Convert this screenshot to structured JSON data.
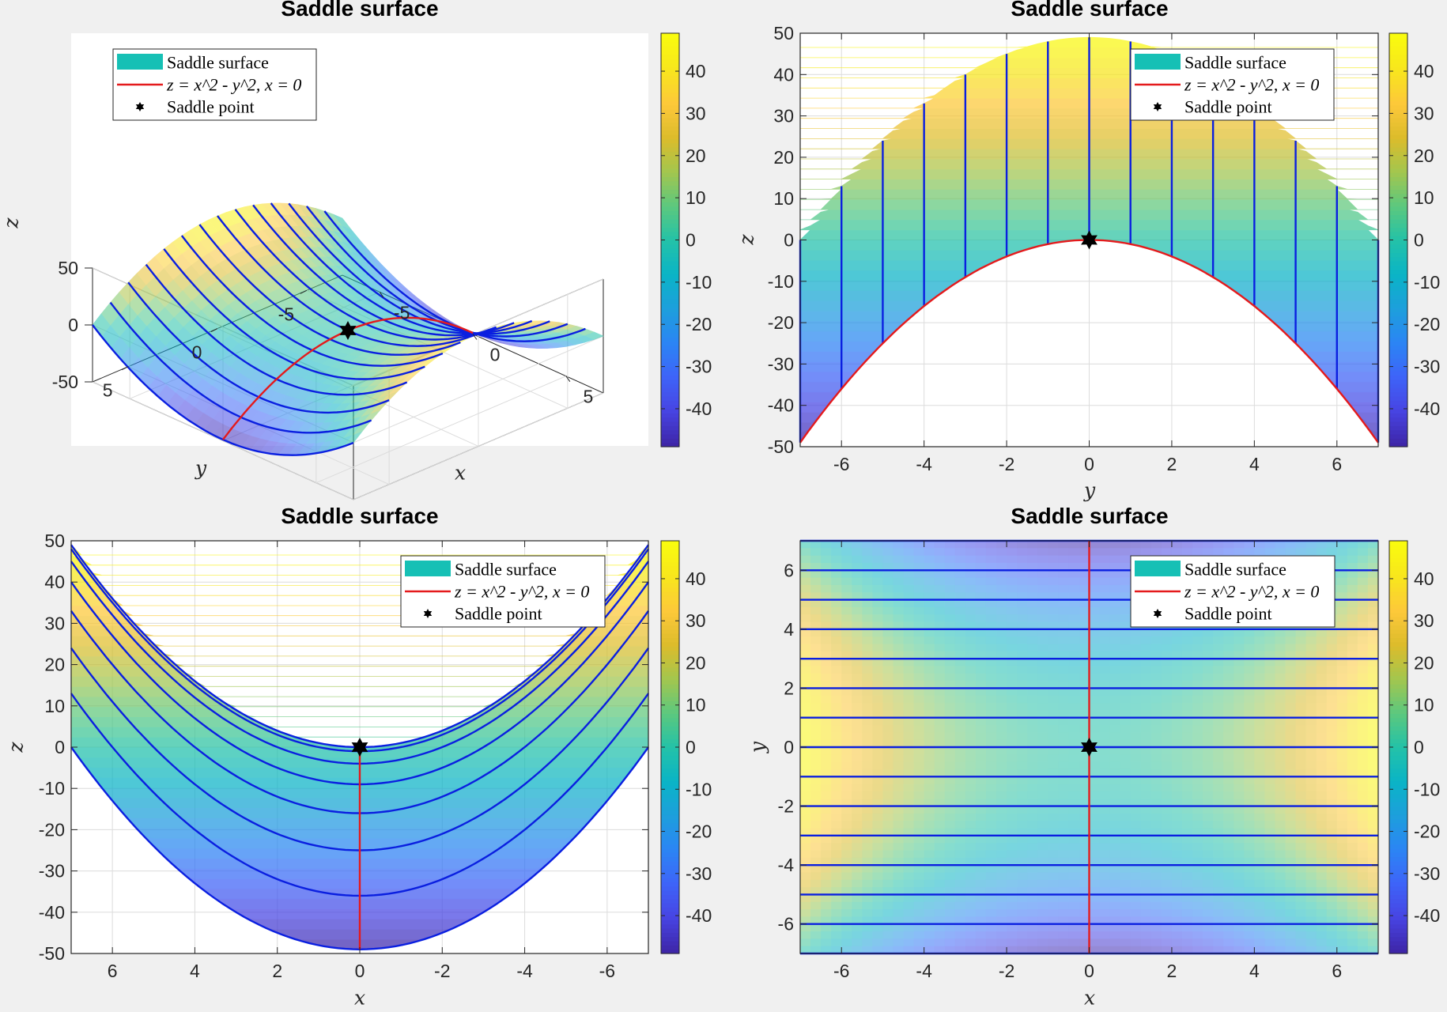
{
  "figure": {
    "background": "#f0f0f0",
    "colormap": "parula",
    "colormap_stops": [
      "#3e26a8",
      "#4744e3",
      "#3e64f8",
      "#2b85f4",
      "#1d9fdc",
      "#0ab4c6",
      "#24c2a8",
      "#5cc87e",
      "#a3c64e",
      "#dcbc2b",
      "#fdc83a",
      "#f8e61d",
      "#f9fb0e"
    ]
  },
  "chart_data": [
    {
      "type": "surface3d",
      "panel": "top-left",
      "title": "Saddle surface",
      "xlabel": "x",
      "ylabel": "y",
      "zlabel": "z",
      "function": "z = x^2 - y^2",
      "xlim": [
        -7,
        7
      ],
      "ylim": [
        -7,
        7
      ],
      "zlim": [
        -50,
        50
      ],
      "xticks": [
        -5,
        0,
        5
      ],
      "xtick_labels": [
        "-5",
        "0",
        "5"
      ],
      "yticks": [
        -5,
        0,
        5
      ],
      "ytick_labels": [
        "-5",
        "0",
        "5"
      ],
      "zticks": [
        -50,
        0,
        50
      ],
      "ztick_labels": [
        "-50",
        "0",
        "50"
      ],
      "view": {
        "azimuth": -37.5,
        "elevation": 30
      },
      "grid": true,
      "blue_lines_y": [
        -6,
        -5,
        -4,
        -3,
        -2,
        -1,
        0,
        1,
        2,
        3,
        4,
        5,
        6,
        7
      ],
      "red_curve": "x = 0",
      "saddle_point": [
        0,
        0,
        0
      ],
      "legend": {
        "position": "top-left",
        "entries": [
          "Saddle surface",
          "z = x^2 - y^2, x = 0",
          "Saddle point"
        ]
      },
      "colorbar": {
        "range": [
          -49,
          49
        ],
        "ticks": [
          -40,
          -30,
          -20,
          -10,
          0,
          10,
          20,
          30,
          40
        ],
        "tick_labels": [
          "-40",
          "-30",
          "-20",
          "-10",
          "0",
          "10",
          "20",
          "30",
          "40"
        ]
      }
    },
    {
      "type": "surface3d",
      "panel": "top-right",
      "title": "Saddle surface",
      "xlabel": "y",
      "ylabel": "z",
      "view": {
        "azimuth": 90,
        "elevation": 0
      },
      "xlim": [
        -7,
        7
      ],
      "ylim": [
        -50,
        50
      ],
      "xticks": [
        -6,
        -4,
        -2,
        0,
        2,
        4,
        6
      ],
      "xtick_labels": [
        "-6",
        "-4",
        "-2",
        "0",
        "2",
        "4",
        "6"
      ],
      "yticks": [
        -50,
        -40,
        -30,
        -20,
        -10,
        0,
        10,
        20,
        30,
        40,
        50
      ],
      "ytick_labels": [
        "-50",
        "-40",
        "-30",
        "-20",
        "-10",
        "0",
        "10",
        "20",
        "30",
        "40",
        "50"
      ],
      "grid": true,
      "legend": {
        "position": "top-right",
        "entries": [
          "Saddle surface",
          "z = x^2 - y^2, x = 0",
          "Saddle point"
        ]
      },
      "colorbar": {
        "range": [
          -49,
          49
        ],
        "ticks": [
          -40,
          -30,
          -20,
          -10,
          0,
          10,
          20,
          30,
          40
        ],
        "tick_labels": [
          "-40",
          "-30",
          "-20",
          "-10",
          "0",
          "10",
          "20",
          "30",
          "40"
        ]
      }
    },
    {
      "type": "surface3d",
      "panel": "bottom-left",
      "title": "Saddle surface",
      "xlabel": "x",
      "ylabel": "z",
      "view": {
        "azimuth": 180,
        "elevation": 0
      },
      "xlim": [
        7,
        -7
      ],
      "ylim": [
        -50,
        50
      ],
      "xticks": [
        6,
        4,
        2,
        0,
        -2,
        -4,
        -6
      ],
      "xtick_labels": [
        "6",
        "4",
        "2",
        "0",
        "-2",
        "-4",
        "-6"
      ],
      "yticks": [
        -50,
        -40,
        -30,
        -20,
        -10,
        0,
        10,
        20,
        30,
        40,
        50
      ],
      "ytick_labels": [
        "-50",
        "-40",
        "-30",
        "-20",
        "-10",
        "0",
        "10",
        "20",
        "30",
        "40",
        "50"
      ],
      "grid": true,
      "legend": {
        "position": "top-right",
        "entries": [
          "Saddle surface",
          "z = x^2 - y^2, x = 0",
          "Saddle point"
        ]
      },
      "colorbar": {
        "range": [
          -49,
          49
        ],
        "ticks": [
          -40,
          -30,
          -20,
          -10,
          0,
          10,
          20,
          30,
          40
        ],
        "tick_labels": [
          "-40",
          "-30",
          "-20",
          "-10",
          "0",
          "10",
          "20",
          "30",
          "40"
        ]
      }
    },
    {
      "type": "surface3d",
      "panel": "bottom-right",
      "title": "Saddle surface",
      "xlabel": "x",
      "ylabel": "y",
      "view": {
        "azimuth": 0,
        "elevation": 90
      },
      "xlim": [
        -7,
        7
      ],
      "ylim": [
        -7,
        7
      ],
      "xticks": [
        -6,
        -4,
        -2,
        0,
        2,
        4,
        6
      ],
      "xtick_labels": [
        "-6",
        "-4",
        "-2",
        "0",
        "2",
        "4",
        "6"
      ],
      "yticks": [
        -6,
        -4,
        -2,
        0,
        2,
        4,
        6
      ],
      "ytick_labels": [
        "-6",
        "-4",
        "-2",
        "0",
        "2",
        "4",
        "6"
      ],
      "grid": false,
      "legend": {
        "position": "top-right",
        "entries": [
          "Saddle surface",
          "z = x^2 - y^2, x = 0",
          "Saddle point"
        ]
      },
      "colorbar": {
        "range": [
          -49,
          49
        ],
        "ticks": [
          -40,
          -30,
          -20,
          -10,
          0,
          10,
          20,
          30,
          40
        ],
        "tick_labels": [
          "-40",
          "-30",
          "-20",
          "-10",
          "0",
          "10",
          "20",
          "30",
          "40"
        ]
      }
    }
  ]
}
